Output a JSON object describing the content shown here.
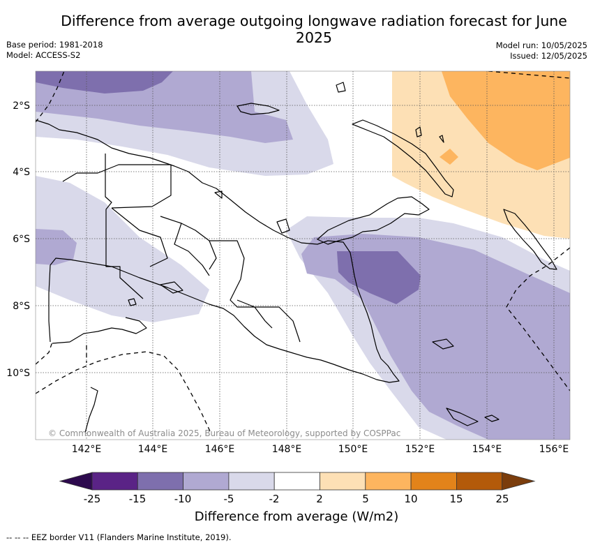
{
  "title": "Difference from average outgoing longwave radiation forecast for June 2025",
  "meta_left": {
    "base_period": "Base period: 1981-2018",
    "model": "Model: ACCESS-S2"
  },
  "meta_right": {
    "model_run": "Model run: 10/05/2025",
    "issued": "Issued: 12/05/2025"
  },
  "copyright": "© Commonwealth of Australia 2025, Bureau of Meteorology, supported by COSPPac",
  "axes": {
    "longitude_labels": [
      "142°E",
      "144°E",
      "146°E",
      "148°E",
      "150°E",
      "152°E",
      "154°E",
      "156°E"
    ],
    "latitude_labels": [
      "2°S",
      "4°S",
      "6°S",
      "8°S",
      "10°S"
    ]
  },
  "colorbar": {
    "labels": [
      "-25",
      "-15",
      "-10",
      "-5",
      "-2",
      "2",
      "5",
      "10",
      "15",
      "25"
    ],
    "colors": [
      "#2d0a4e",
      "#5a2386",
      "#7e6fad",
      "#b0a9d2",
      "#d9d9ea",
      "#ffffff",
      "#fde0b5",
      "#fdb55f",
      "#e2831a",
      "#b35a0a",
      "#7b3d0c"
    ],
    "title": "Difference from average (W/m2)"
  },
  "legend_note": "--  --  -- EEZ border V11 (Flanders Marine Institute, 2019)."
}
